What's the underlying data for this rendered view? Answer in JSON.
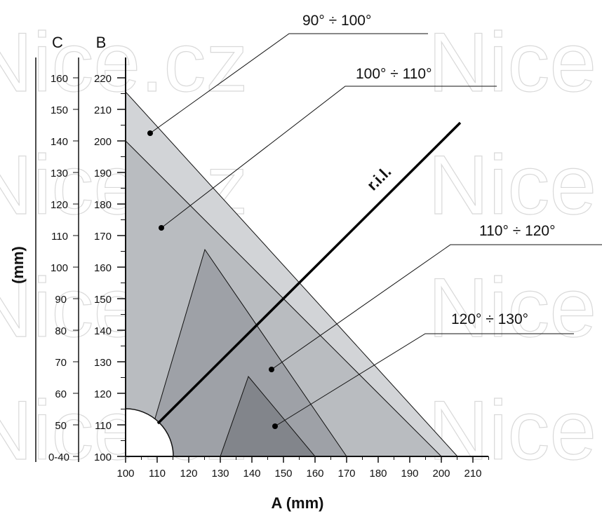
{
  "watermark": "Nice.cz",
  "axes": {
    "x_title": "A (mm)",
    "x_ticks": [
      "100",
      "110",
      "120",
      "130",
      "140",
      "150",
      "160",
      "170",
      "180",
      "190",
      "200",
      "210"
    ],
    "b_label": "B",
    "b_ticks": [
      "100",
      "110",
      "120",
      "130",
      "140",
      "150",
      "160",
      "170",
      "180",
      "190",
      "200",
      "210",
      "220"
    ],
    "c_label": "C",
    "c_ticks": [
      "0-40",
      "50",
      "60",
      "70",
      "80",
      "90",
      "100",
      "110",
      "120",
      "130",
      "140",
      "150",
      "160"
    ],
    "y_unit": "(mm)"
  },
  "line_label": "r.i.l.",
  "ranges": [
    {
      "label": "90° ÷ 100°",
      "color": "#d2d4d7"
    },
    {
      "label": "100° ÷ 110°",
      "color": "#b9bcc0"
    },
    {
      "label": "110° ÷ 120°",
      "color": "#9ea1a7"
    },
    {
      "label": "120° ÷ 130°",
      "color": "#82858b"
    }
  ]
}
